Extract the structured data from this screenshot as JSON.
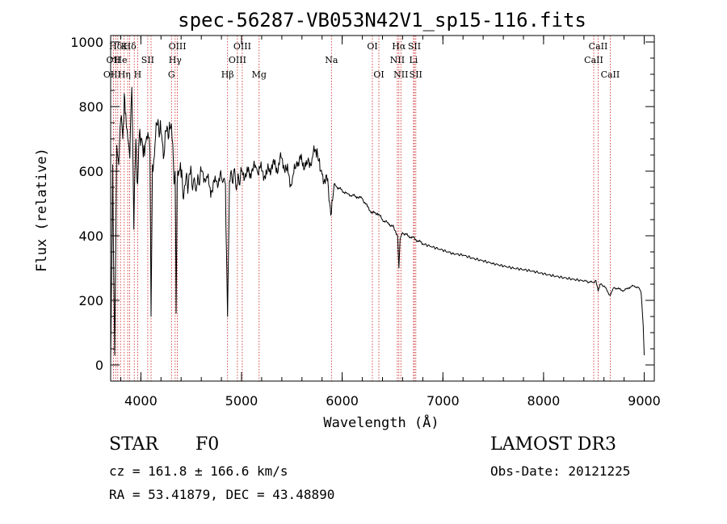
{
  "chart_data": {
    "type": "line",
    "title": "spec-56287-VB053N42V1_sp15-116.fits",
    "xlabel": "Wavelength (Å)",
    "ylabel": "Flux (relative)",
    "xlim": [
      3700,
      9100
    ],
    "ylim": [
      -50,
      1020
    ],
    "x_ticks": [
      4000,
      5000,
      6000,
      7000,
      8000,
      9000
    ],
    "y_ticks": [
      0,
      200,
      400,
      600,
      800,
      1000
    ],
    "x_minor_step": 200,
    "y_minor_step": 50,
    "series": [
      {
        "name": "flux",
        "x": [
          3700,
          3720,
          3740,
          3760,
          3780,
          3800,
          3820,
          3835,
          3850,
          3870,
          3890,
          3910,
          3930,
          3950,
          3968,
          3990,
          4010,
          4030,
          4050,
          4070,
          4090,
          4101,
          4115,
          4140,
          4170,
          4200,
          4230,
          4260,
          4290,
          4310,
          4330,
          4340,
          4350,
          4360,
          4380,
          4400,
          4430,
          4460,
          4490,
          4520,
          4560,
          4600,
          4650,
          4700,
          4750,
          4800,
          4840,
          4861,
          4880,
          4920,
          4960,
          5000,
          5050,
          5100,
          5150,
          5200,
          5250,
          5300,
          5350,
          5400,
          5450,
          5500,
          5550,
          5600,
          5650,
          5700,
          5750,
          5780,
          5800,
          5850,
          5893,
          5920,
          5950,
          6000,
          6050,
          6100,
          6150,
          6200,
          6250,
          6300,
          6350,
          6400,
          6450,
          6500,
          6530,
          6550,
          6563,
          6575,
          6600,
          6650,
          6700,
          6750,
          6800,
          6900,
          7000,
          7100,
          7200,
          7300,
          7400,
          7500,
          7600,
          7700,
          7800,
          7900,
          8000,
          8100,
          8200,
          8300,
          8400,
          8498,
          8520,
          8542,
          8560,
          8600,
          8662,
          8700,
          8750,
          8800,
          8850,
          8900,
          8950,
          8970,
          8990,
          9000
        ],
        "values": [
          0,
          620,
          30,
          680,
          620,
          760,
          700,
          840,
          780,
          700,
          640,
          860,
          420,
          700,
          560,
          730,
          700,
          680,
          690,
          720,
          660,
          150,
          620,
          680,
          760,
          720,
          650,
          740,
          730,
          700,
          560,
          600,
          160,
          560,
          600,
          580,
          540,
          570,
          590,
          560,
          560,
          600,
          580,
          540,
          570,
          580,
          560,
          150,
          570,
          590,
          560,
          600,
          590,
          600,
          610,
          600,
          590,
          620,
          610,
          640,
          600,
          560,
          630,
          630,
          620,
          640,
          670,
          600,
          590,
          570,
          470,
          560,
          550,
          540,
          530,
          525,
          520,
          515,
          490,
          470,
          470,
          450,
          440,
          430,
          415,
          400,
          300,
          390,
          410,
          400,
          395,
          385,
          375,
          365,
          355,
          345,
          340,
          330,
          322,
          314,
          306,
          300,
          295,
          290,
          282,
          276,
          270,
          265,
          260,
          255,
          262,
          228,
          250,
          245,
          215,
          240,
          235,
          230,
          240,
          245,
          238,
          220,
          120,
          30
        ]
      }
    ],
    "line_annotations": [
      {
        "label": "Hδ",
        "wavelength": 3750,
        "row": 0
      },
      {
        "label": "K",
        "wavelength": 3834,
        "row": 0
      },
      {
        "label": "Hδ",
        "wavelength": 3890,
        "row": 0
      },
      {
        "label": "OIII",
        "wavelength": 4363,
        "row": 0
      },
      {
        "label": "OIII",
        "wavelength": 5007,
        "row": 0
      },
      {
        "label": "OI",
        "wavelength": 6300,
        "row": 0
      },
      {
        "label": "Hα",
        "wavelength": 6563,
        "row": 0
      },
      {
        "label": "SII",
        "wavelength": 6717,
        "row": 0
      },
      {
        "label": "CaII",
        "wavelength": 8542,
        "row": 0
      },
      {
        "label": "OII",
        "wavelength": 3727,
        "row": 1
      },
      {
        "label": "He",
        "wavelength": 3800,
        "row": 1
      },
      {
        "label": "SII",
        "wavelength": 4068,
        "row": 1
      },
      {
        "label": "Hγ",
        "wavelength": 4340,
        "row": 1
      },
      {
        "label": "OIII",
        "wavelength": 4959,
        "row": 1
      },
      {
        "label": "Na",
        "wavelength": 5893,
        "row": 1
      },
      {
        "label": "NII",
        "wavelength": 6548,
        "row": 1
      },
      {
        "label": "Li",
        "wavelength": 6708,
        "row": 1
      },
      {
        "label": "CaII",
        "wavelength": 8498,
        "row": 1
      },
      {
        "label": "OIII",
        "wavelength": 3715,
        "row": 2
      },
      {
        "label": "Hη",
        "wavelength": 3835,
        "row": 2
      },
      {
        "label": "H",
        "wavelength": 3968,
        "row": 2
      },
      {
        "label": "G",
        "wavelength": 4304,
        "row": 2
      },
      {
        "label": "Hβ",
        "wavelength": 4861,
        "row": 2
      },
      {
        "label": "Mg",
        "wavelength": 5175,
        "row": 2
      },
      {
        "label": "OI",
        "wavelength": 6364,
        "row": 2
      },
      {
        "label": "NII",
        "wavelength": 6583,
        "row": 2
      },
      {
        "label": "SII",
        "wavelength": 6731,
        "row": 2
      },
      {
        "label": "CaII",
        "wavelength": 8662,
        "row": 2
      }
    ],
    "marker_lines": [
      3727,
      3750,
      3771,
      3798,
      3835,
      3869,
      3889,
      3934,
      3968,
      4068,
      4101,
      4304,
      4340,
      4363,
      4861,
      4959,
      5007,
      5175,
      5893,
      6300,
      6364,
      6548,
      6563,
      6583,
      6708,
      6717,
      6731,
      8498,
      8542,
      8662
    ]
  },
  "info": {
    "object_class": "STAR",
    "subclass": "F0",
    "velocity": "cz = 161.8 ± 166.6 km/s",
    "coordinates": "RA =  53.41879, DEC =  43.48890",
    "survey": "LAMOST DR3",
    "obs_date": "Obs-Date: 20121225"
  }
}
